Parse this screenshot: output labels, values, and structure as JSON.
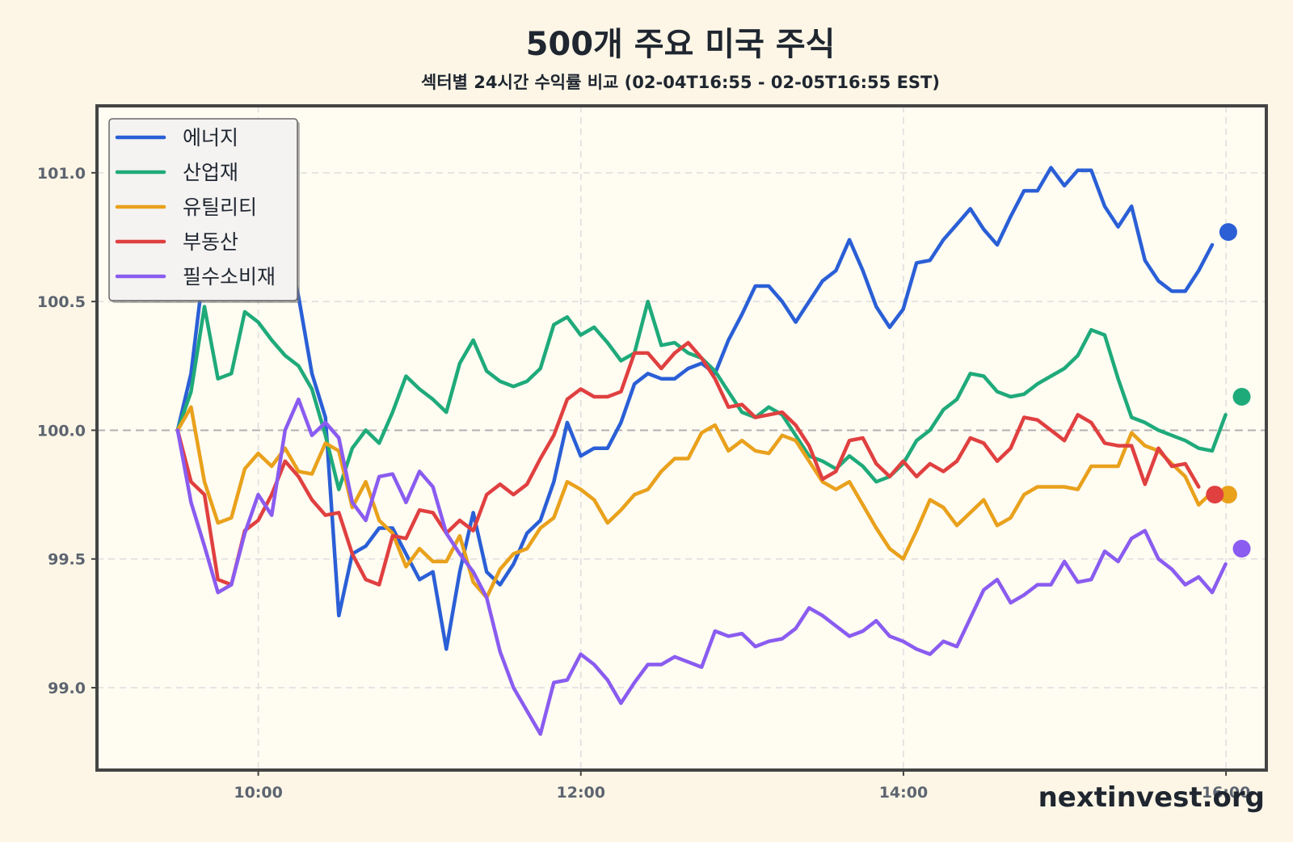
{
  "page": {
    "title": "500개 주요 미국 주식",
    "subtitle": "섹터별 24시간 수익률 비교 (02-04T16:55 - 02-05T16:55 EST)",
    "watermark": "nextinvest.org"
  },
  "colors": {
    "background": "#fdf6e6",
    "plot_background": "#fffcf2",
    "frame": "#444444",
    "grid": "#dddddd",
    "baseline": "#b0b0b0"
  },
  "chart_data": {
    "type": "line",
    "title": "500개 주요 미국 주식",
    "subtitle": "섹터별 24시간 수익률 비교 (02-04T16:55 - 02-05T16:55 EST)",
    "xlabel": "",
    "ylabel": "",
    "x_unit": "hours",
    "xlim": [
      9.0,
      16.25
    ],
    "ylim": [
      98.68,
      101.26
    ],
    "x_ticks": [
      {
        "v": 10,
        "label": "10:00"
      },
      {
        "v": 12,
        "label": "12:00"
      },
      {
        "v": 14,
        "label": "14:00"
      },
      {
        "v": 16,
        "label": "16:00"
      }
    ],
    "y_ticks": [
      {
        "v": 99.0,
        "label": "99.0"
      },
      {
        "v": 99.5,
        "label": "99.5"
      },
      {
        "v": 100.0,
        "label": "100.0"
      },
      {
        "v": 100.5,
        "label": "100.5"
      },
      {
        "v": 101.0,
        "label": "101.0"
      }
    ],
    "baseline": 100.0,
    "grid": true,
    "legend_position": "top-left",
    "x_start": 9.5,
    "x_step": 0.0833,
    "series": [
      {
        "name": "에너지",
        "color": "#2a5fd6",
        "marker": 100.77,
        "values": [
          100.0,
          100.22,
          100.65,
          100.85,
          100.88,
          100.82,
          100.95,
          100.98,
          100.75,
          100.52,
          100.22,
          100.05,
          99.28,
          99.52,
          99.55,
          99.62,
          99.62,
          99.52,
          99.42,
          99.45,
          99.15,
          99.45,
          99.68,
          99.45,
          99.4,
          99.48,
          99.6,
          99.65,
          99.8,
          100.03,
          99.9,
          99.93,
          99.93,
          100.03,
          100.18,
          100.22,
          100.2,
          100.2,
          100.24,
          100.26,
          100.22,
          100.35,
          100.45,
          100.56,
          100.56,
          100.5,
          100.42,
          100.5,
          100.58,
          100.62,
          100.74,
          100.62,
          100.48,
          100.4,
          100.47,
          100.65,
          100.66,
          100.74,
          100.8,
          100.86,
          100.78,
          100.72,
          100.83,
          100.93,
          100.93,
          101.02,
          100.95,
          101.01,
          101.01,
          100.87,
          100.79,
          100.87,
          100.66,
          100.58,
          100.54,
          100.54,
          100.62,
          100.72
        ]
      },
      {
        "name": "산업재",
        "color": "#1faa7a",
        "marker": 100.13,
        "values": [
          100.0,
          100.15,
          100.48,
          100.2,
          100.22,
          100.46,
          100.42,
          100.35,
          100.29,
          100.25,
          100.16,
          99.98,
          99.77,
          99.93,
          100.0,
          99.95,
          100.07,
          100.21,
          100.16,
          100.12,
          100.07,
          100.26,
          100.35,
          100.23,
          100.19,
          100.17,
          100.19,
          100.24,
          100.41,
          100.44,
          100.37,
          100.4,
          100.34,
          100.27,
          100.3,
          100.5,
          100.33,
          100.34,
          100.3,
          100.28,
          100.23,
          100.15,
          100.07,
          100.05,
          100.09,
          100.06,
          99.98,
          99.9,
          99.88,
          99.85,
          99.9,
          99.86,
          99.8,
          99.82,
          99.87,
          99.96,
          100.0,
          100.08,
          100.12,
          100.22,
          100.21,
          100.15,
          100.13,
          100.14,
          100.18,
          100.21,
          100.24,
          100.29,
          100.39,
          100.37,
          100.2,
          100.05,
          100.03,
          100.0,
          99.98,
          99.96,
          99.93,
          99.92,
          100.06
        ]
      },
      {
        "name": "유틸리티",
        "color": "#e9a11c",
        "marker": 99.75,
        "values": [
          100.0,
          100.09,
          99.8,
          99.64,
          99.66,
          99.85,
          99.91,
          99.86,
          99.93,
          99.84,
          99.83,
          99.95,
          99.92,
          99.7,
          99.8,
          99.65,
          99.6,
          99.47,
          99.54,
          99.49,
          99.49,
          99.59,
          99.41,
          99.35,
          99.46,
          99.52,
          99.54,
          99.62,
          99.66,
          99.8,
          99.77,
          99.73,
          99.64,
          99.69,
          99.75,
          99.77,
          99.84,
          99.89,
          99.89,
          99.99,
          100.02,
          99.92,
          99.96,
          99.92,
          99.91,
          99.98,
          99.96,
          99.88,
          99.8,
          99.77,
          99.8,
          99.71,
          99.62,
          99.54,
          99.5,
          99.61,
          99.73,
          99.7,
          99.63,
          99.68,
          99.73,
          99.63,
          99.66,
          99.75,
          99.78,
          99.78,
          99.78,
          99.77,
          99.86,
          99.86,
          99.86,
          99.99,
          99.94,
          99.92,
          99.87,
          99.82,
          99.71,
          99.76
        ]
      },
      {
        "name": "부동산",
        "color": "#e04040",
        "marker": 99.75,
        "values": [
          100.0,
          99.8,
          99.75,
          99.42,
          99.4,
          99.61,
          99.65,
          99.75,
          99.88,
          99.82,
          99.73,
          99.67,
          99.68,
          99.52,
          99.42,
          99.4,
          99.59,
          99.58,
          99.69,
          99.68,
          99.6,
          99.65,
          99.61,
          99.75,
          99.79,
          99.75,
          99.79,
          99.89,
          99.98,
          100.12,
          100.16,
          100.13,
          100.13,
          100.15,
          100.3,
          100.3,
          100.24,
          100.3,
          100.34,
          100.28,
          100.2,
          100.09,
          100.1,
          100.05,
          100.06,
          100.07,
          100.02,
          99.94,
          99.81,
          99.84,
          99.96,
          99.97,
          99.87,
          99.82,
          99.88,
          99.82,
          99.87,
          99.84,
          99.88,
          99.97,
          99.95,
          99.88,
          99.93,
          100.05,
          100.04,
          100.0,
          99.96,
          100.06,
          100.03,
          99.95,
          99.94,
          99.94,
          99.79,
          99.93,
          99.86,
          99.87,
          99.78
        ]
      },
      {
        "name": "필수소비재",
        "color": "#8a5cf0",
        "marker": 99.54,
        "values": [
          100.0,
          99.72,
          99.55,
          99.37,
          99.4,
          99.6,
          99.75,
          99.67,
          100.0,
          100.12,
          99.98,
          100.03,
          99.97,
          99.72,
          99.65,
          99.82,
          99.83,
          99.72,
          99.84,
          99.78,
          99.6,
          99.52,
          99.45,
          99.35,
          99.14,
          99.0,
          98.91,
          98.82,
          99.02,
          99.03,
          99.13,
          99.09,
          99.03,
          98.94,
          99.02,
          99.09,
          99.09,
          99.12,
          99.1,
          99.08,
          99.22,
          99.2,
          99.21,
          99.16,
          99.18,
          99.19,
          99.23,
          99.31,
          99.28,
          99.24,
          99.2,
          99.22,
          99.26,
          99.2,
          99.18,
          99.15,
          99.13,
          99.18,
          99.16,
          99.27,
          99.38,
          99.42,
          99.33,
          99.36,
          99.4,
          99.4,
          99.49,
          99.41,
          99.42,
          99.53,
          99.49,
          99.58,
          99.61,
          99.5,
          99.46,
          99.4,
          99.43,
          99.37,
          99.48
        ]
      }
    ]
  }
}
